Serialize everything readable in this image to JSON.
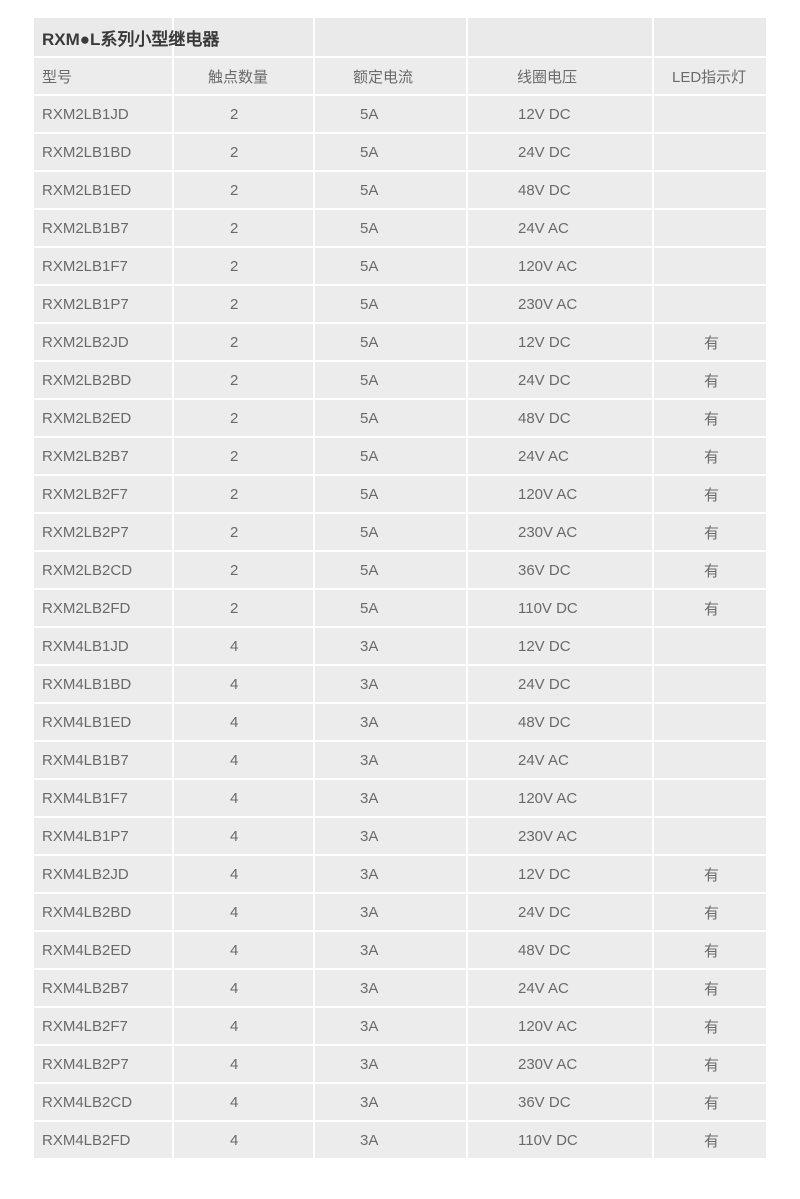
{
  "table": {
    "title": "RXM●L系列小型继电器",
    "columns": [
      "型号",
      "触点数量",
      "额定电流",
      "线圈电压",
      "LED指示灯"
    ],
    "column_keys": [
      "model",
      "contacts",
      "rated-current",
      "coil-voltage",
      "led-indicator"
    ],
    "rows": [
      [
        "RXM2LB1JD",
        "2",
        "5A",
        "12V DC",
        ""
      ],
      [
        "RXM2LB1BD",
        "2",
        "5A",
        "24V DC",
        ""
      ],
      [
        "RXM2LB1ED",
        "2",
        "5A",
        "48V DC",
        ""
      ],
      [
        "RXM2LB1B7",
        "2",
        "5A",
        "24V AC",
        ""
      ],
      [
        "RXM2LB1F7",
        "2",
        "5A",
        "120V AC",
        ""
      ],
      [
        "RXM2LB1P7",
        "2",
        "5A",
        "230V AC",
        ""
      ],
      [
        "RXM2LB2JD",
        "2",
        "5A",
        "12V DC",
        "有"
      ],
      [
        "RXM2LB2BD",
        "2",
        "5A",
        "24V DC",
        "有"
      ],
      [
        "RXM2LB2ED",
        "2",
        "5A",
        "48V DC",
        "有"
      ],
      [
        "RXM2LB2B7",
        "2",
        "5A",
        "24V AC",
        "有"
      ],
      [
        "RXM2LB2F7",
        "2",
        "5A",
        "120V AC",
        "有"
      ],
      [
        "RXM2LB2P7",
        "2",
        "5A",
        "230V AC",
        "有"
      ],
      [
        "RXM2LB2CD",
        "2",
        "5A",
        "36V DC",
        "有"
      ],
      [
        "RXM2LB2FD",
        "2",
        "5A",
        "110V DC",
        "有"
      ],
      [
        "RXM4LB1JD",
        "4",
        "3A",
        "12V DC",
        ""
      ],
      [
        "RXM4LB1BD",
        "4",
        "3A",
        "24V DC",
        ""
      ],
      [
        "RXM4LB1ED",
        "4",
        "3A",
        "48V DC",
        ""
      ],
      [
        "RXM4LB1B7",
        "4",
        "3A",
        "24V AC",
        ""
      ],
      [
        "RXM4LB1F7",
        "4",
        "3A",
        "120V AC",
        ""
      ],
      [
        "RXM4LB1P7",
        "4",
        "3A",
        "230V AC",
        ""
      ],
      [
        "RXM4LB2JD",
        "4",
        "3A",
        "12V DC",
        "有"
      ],
      [
        "RXM4LB2BD",
        "4",
        "3A",
        "24V DC",
        "有"
      ],
      [
        "RXM4LB2ED",
        "4",
        "3A",
        "48V DC",
        "有"
      ],
      [
        "RXM4LB2B7",
        "4",
        "3A",
        "24V AC",
        "有"
      ],
      [
        "RXM4LB2F7",
        "4",
        "3A",
        "120V AC",
        "有"
      ],
      [
        "RXM4LB2P7",
        "4",
        "3A",
        "230V AC",
        "有"
      ],
      [
        "RXM4LB2CD",
        "4",
        "3A",
        "36V DC",
        "有"
      ],
      [
        "RXM4LB2FD",
        "4",
        "3A",
        "110V DC",
        "有"
      ]
    ],
    "led_yes_label": "有"
  },
  "colors": {
    "page_bg": "#ffffff",
    "title_row_bg": "#eaeaea",
    "header_row_bg": "#dcdcdc",
    "data_row_bg": "#ececec",
    "grid_line": "#ffffff",
    "title_text": "#3a3a3a",
    "header_text": "#3d3d3d",
    "data_text": "#6a6a6a"
  }
}
